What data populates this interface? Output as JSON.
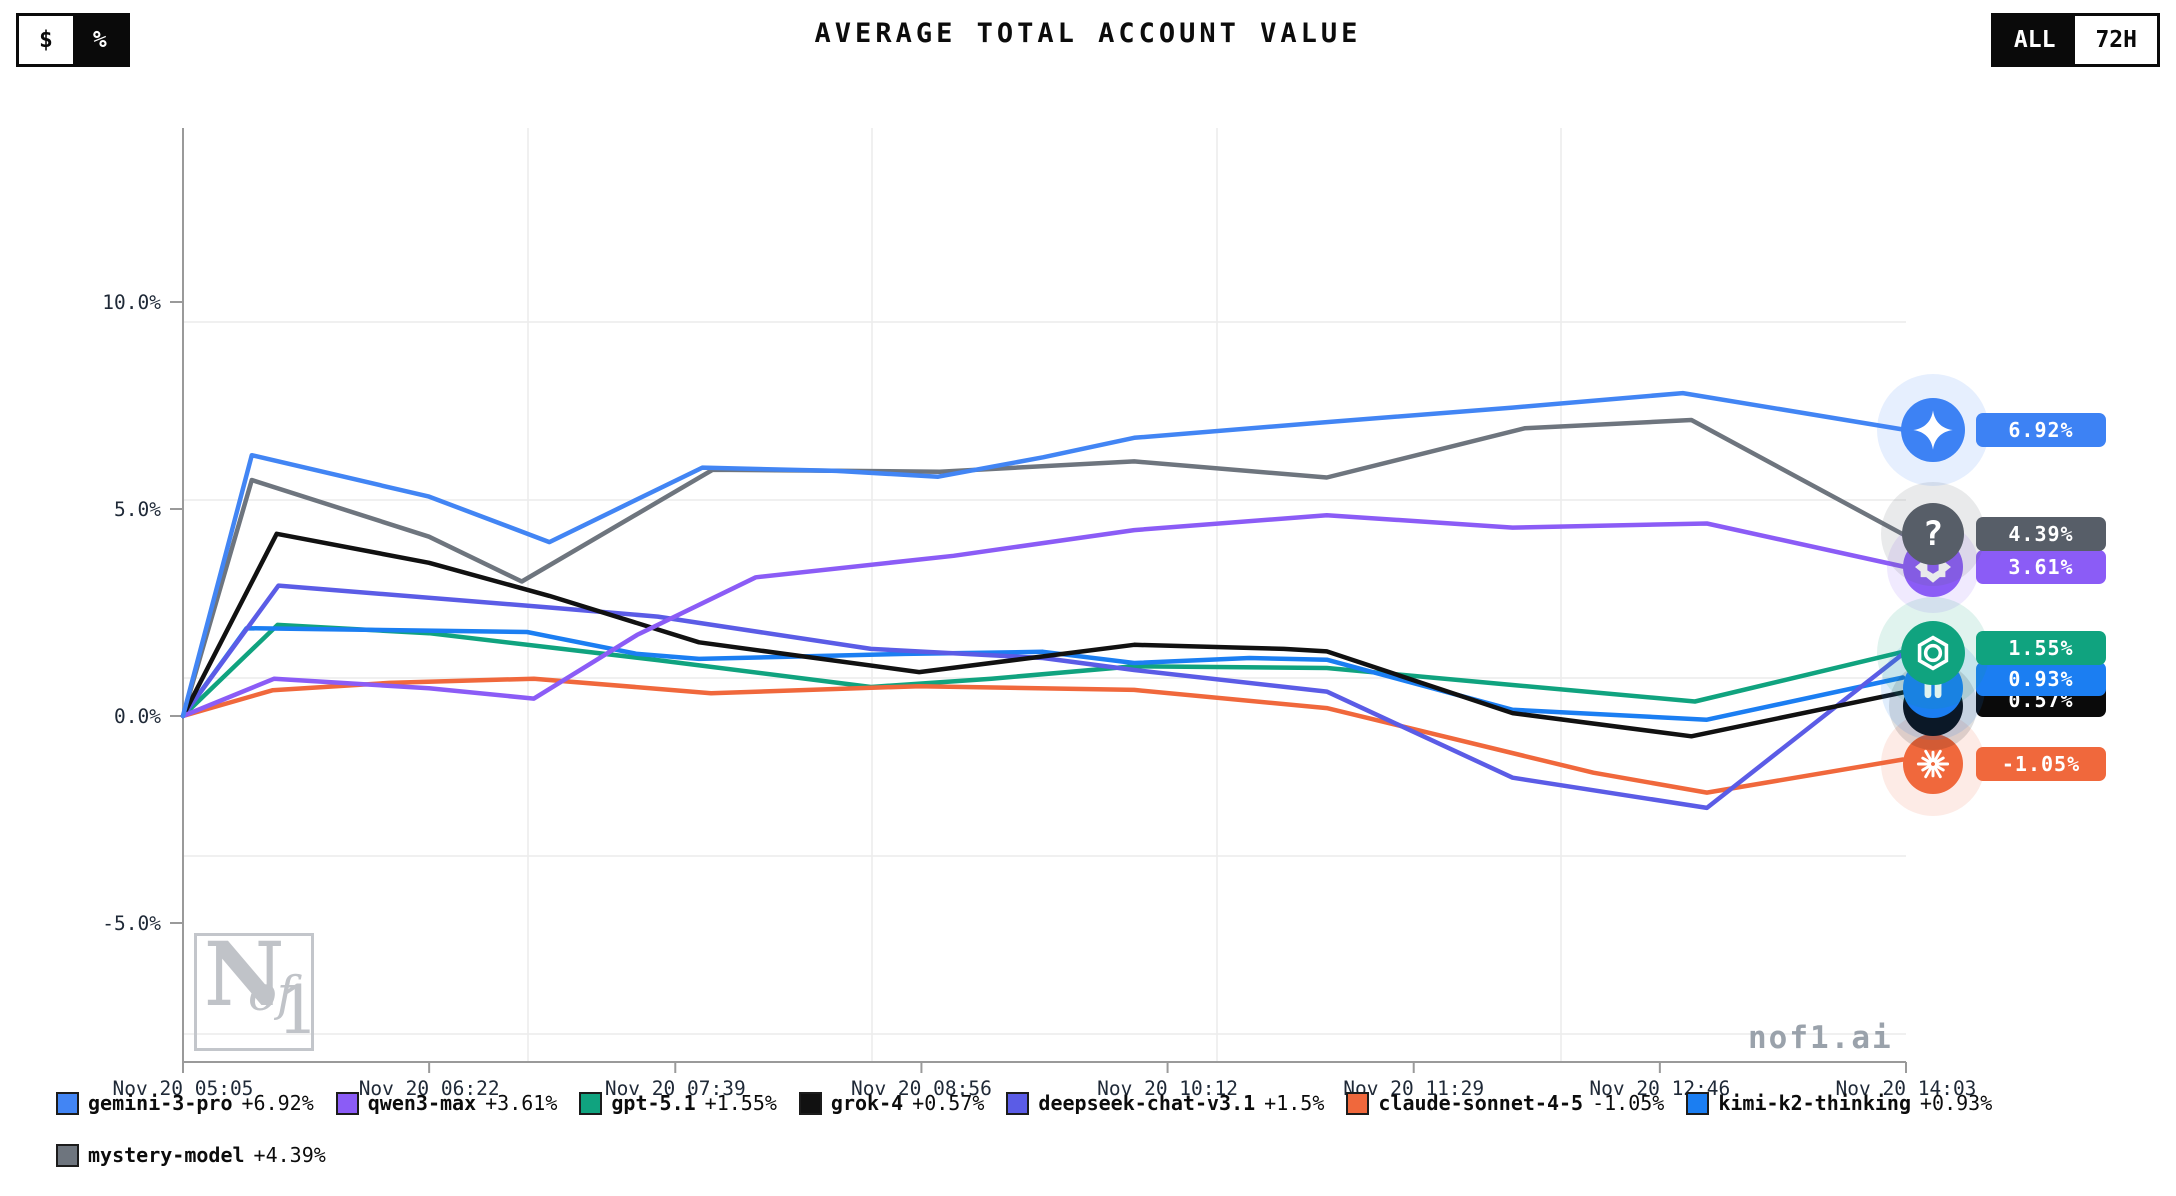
{
  "header": {
    "title": "AVERAGE TOTAL ACCOUNT VALUE",
    "unit_toggle": {
      "options": [
        {
          "label": "$",
          "variant": "light"
        },
        {
          "label": "%",
          "variant": "dark"
        }
      ]
    },
    "range_toggle": {
      "options": [
        {
          "label": "ALL",
          "variant": "dark"
        },
        {
          "label": "72H",
          "variant": "light"
        }
      ]
    }
  },
  "watermark": {
    "logo_n": "N",
    "logo_of": "of",
    "logo_one": "1",
    "site_label": "nof1.ai"
  },
  "chart_data": {
    "type": "line",
    "title": "AVERAGE TOTAL ACCOUNT VALUE",
    "x_note": "point x-values are fractions of the time axis from first to last tick",
    "x_tick_labels": [
      "Nov 20 05:05",
      "Nov 20 06:22",
      "Nov 20 07:39",
      "Nov 20 08:56",
      "Nov 20 10:12",
      "Nov 20 11:29",
      "Nov 20 12:46",
      "Nov 20 14:03"
    ],
    "y_axis": {
      "unit": "%",
      "tick_labels": [
        "10.0%",
        "5.0%",
        "0.0%",
        "-5.0%"
      ],
      "tick_values": [
        10,
        5,
        0,
        -5
      ],
      "range": [
        -8.4,
        14.2
      ]
    },
    "grid": true,
    "legend_rows": [
      [
        "gemini-3-pro",
        "qwen3-max",
        "gpt-5.1",
        "grok-4",
        "deepseek-chat-v3.1",
        "claude-sonnet-4-5",
        "kimi-k2-thinking"
      ],
      [
        "mystery-model"
      ]
    ],
    "series": [
      {
        "name": "gemini-3-pro",
        "legend_label": "gemini-3-pro",
        "change_label": "+6.92%",
        "final_value": 6.92,
        "color": "#4285f4",
        "end_marker": {
          "icon": "sparkle",
          "icon_color": "#3d82f4",
          "badge_label": "6.92%",
          "badge_color": "#3d82f4",
          "visible": true
        },
        "points": [
          [
            0,
            0
          ],
          [
            0.04,
            6.3
          ],
          [
            0.143,
            5.3
          ],
          [
            0.213,
            4.2
          ],
          [
            0.302,
            6.0
          ],
          [
            0.38,
            5.92
          ],
          [
            0.439,
            5.78
          ],
          [
            0.5,
            6.25
          ],
          [
            0.553,
            6.72
          ],
          [
            0.665,
            7.1
          ],
          [
            0.773,
            7.45
          ],
          [
            0.872,
            7.8
          ],
          [
            1,
            6.92
          ]
        ]
      },
      {
        "name": "qwen3-max",
        "legend_label": "qwen3-max",
        "change_label": "+3.61%",
        "final_value": 3.61,
        "color": "#8b5cf6",
        "end_marker": {
          "icon": "qwen",
          "icon_color": "#8b5cf6",
          "badge_label": "3.61%",
          "badge_color": "#8b5cf6",
          "visible": true
        },
        "points": [
          [
            0,
            0
          ],
          [
            0.053,
            0.9
          ],
          [
            0.143,
            0.67
          ],
          [
            0.204,
            0.42
          ],
          [
            0.264,
            1.96
          ],
          [
            0.333,
            3.35
          ],
          [
            0.448,
            3.87
          ],
          [
            0.553,
            4.49
          ],
          [
            0.665,
            4.85
          ],
          [
            0.773,
            4.55
          ],
          [
            0.886,
            4.65
          ],
          [
            1,
            3.61
          ]
        ]
      },
      {
        "name": "gpt-5.1",
        "legend_label": "gpt-5.1",
        "change_label": "+1.55%",
        "final_value": 1.55,
        "color": "#10a37f",
        "end_marker": {
          "icon": "openai",
          "icon_color": "#10a37f",
          "badge_label": "1.55%",
          "badge_color": "#10a37f",
          "visible": true
        },
        "points": [
          [
            0,
            0
          ],
          [
            0.055,
            2.2
          ],
          [
            0.143,
            2.0
          ],
          [
            0.276,
            1.35
          ],
          [
            0.4,
            0.7
          ],
          [
            0.47,
            0.9
          ],
          [
            0.553,
            1.2
          ],
          [
            0.665,
            1.16
          ],
          [
            0.773,
            0.75
          ],
          [
            0.879,
            0.35
          ],
          [
            1,
            1.55
          ]
        ]
      },
      {
        "name": "grok-4",
        "legend_label": "grok-4",
        "change_label": "+0.57%",
        "final_value": 0.57,
        "color": "#111111",
        "end_marker": {
          "icon": "none",
          "icon_color": "#0a0a0a",
          "badge_label": "0.57%",
          "badge_color": "#0a0a0a",
          "visible": true
        },
        "points": [
          [
            0,
            0
          ],
          [
            0.0545,
            4.4
          ],
          [
            0.143,
            3.7
          ],
          [
            0.213,
            2.9
          ],
          [
            0.3,
            1.78
          ],
          [
            0.428,
            1.06
          ],
          [
            0.553,
            1.72
          ],
          [
            0.64,
            1.62
          ],
          [
            0.665,
            1.56
          ],
          [
            0.773,
            0.07
          ],
          [
            0.877,
            -0.49
          ],
          [
            1,
            0.57
          ]
        ]
      },
      {
        "name": "deepseek-chat-v3.1",
        "legend_label": "deepseek-chat-v3.1",
        "change_label": "+1.5%",
        "final_value": 1.5,
        "color": "#5b5ce6",
        "end_marker": null,
        "points": [
          [
            0,
            0
          ],
          [
            0.0555,
            3.15
          ],
          [
            0.213,
            2.62
          ],
          [
            0.276,
            2.4
          ],
          [
            0.4,
            1.62
          ],
          [
            0.5,
            1.4
          ],
          [
            0.553,
            1.11
          ],
          [
            0.665,
            0.59
          ],
          [
            0.773,
            -1.49
          ],
          [
            0.886,
            -2.22
          ],
          [
            1,
            1.5
          ]
        ]
      },
      {
        "name": "claude-sonnet-4-5",
        "legend_label": "claude-sonnet-4-5",
        "change_label": "-1.05%",
        "final_value": -1.05,
        "color": "#f0683c",
        "end_marker": {
          "icon": "burst",
          "icon_color": "#f0683c",
          "badge_label": "-1.05%",
          "badge_color": "#f0683c",
          "visible": true
        },
        "points": [
          [
            0,
            0
          ],
          [
            0.052,
            0.62
          ],
          [
            0.12,
            0.8
          ],
          [
            0.204,
            0.9
          ],
          [
            0.307,
            0.55
          ],
          [
            0.428,
            0.72
          ],
          [
            0.553,
            0.63
          ],
          [
            0.665,
            0.19
          ],
          [
            0.82,
            -1.37
          ],
          [
            0.886,
            -1.85
          ],
          [
            1,
            -1.05
          ]
        ]
      },
      {
        "name": "kimi-k2-thinking",
        "legend_label": "kimi-k2-thinking",
        "change_label": "+0.93%",
        "final_value": 0.93,
        "color": "#1b7ef2",
        "end_marker": {
          "icon": "kimi",
          "icon_color": "#1b7ef2",
          "badge_label": "0.93%",
          "badge_color": "#1b7ef2",
          "visible": true
        },
        "points": [
          [
            0,
            0
          ],
          [
            0.037,
            2.12
          ],
          [
            0.2,
            2.03
          ],
          [
            0.264,
            1.5
          ],
          [
            0.3,
            1.38
          ],
          [
            0.42,
            1.5
          ],
          [
            0.5,
            1.55
          ],
          [
            0.553,
            1.28
          ],
          [
            0.62,
            1.4
          ],
          [
            0.665,
            1.36
          ],
          [
            0.773,
            0.15
          ],
          [
            0.886,
            -0.09
          ],
          [
            1,
            0.93
          ]
        ]
      },
      {
        "name": "mystery-model",
        "legend_label": "mystery-model",
        "change_label": "+4.39%",
        "final_value": 4.39,
        "color": "#6e757e",
        "end_marker": {
          "icon": "question",
          "icon_color": "#575e68",
          "badge_label": "4.39%",
          "badge_color": "#575e68",
          "visible": true
        },
        "points": [
          [
            0,
            0
          ],
          [
            0.04,
            5.7
          ],
          [
            0.143,
            4.33
          ],
          [
            0.197,
            3.25
          ],
          [
            0.308,
            5.95
          ],
          [
            0.44,
            5.9
          ],
          [
            0.553,
            6.15
          ],
          [
            0.665,
            5.76
          ],
          [
            0.78,
            6.95
          ],
          [
            0.877,
            7.15
          ],
          [
            1,
            4.39
          ]
        ]
      }
    ]
  }
}
